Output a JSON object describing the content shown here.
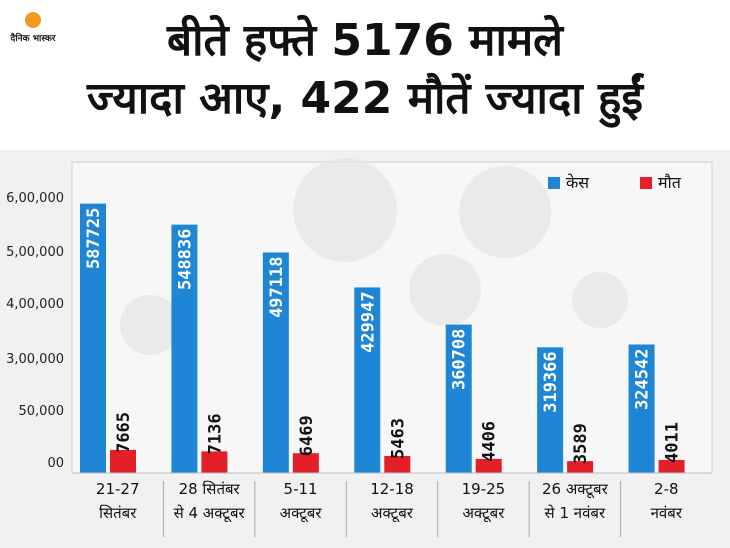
{
  "headline": {
    "line1": "बीते हफ्ते 5176 मामले",
    "line2": "ज्यादा आए, 422 मौतें ज्यादा हुईं"
  },
  "logo": {
    "text": "दैनिक भास्कर",
    "sun_color": "#f39a1e"
  },
  "colors": {
    "cases": "#1f86d6",
    "deaths": "#e3202a",
    "cases_text": "#ffffff",
    "deaths_text": "#111111"
  },
  "chart_data": {
    "type": "bar",
    "categories": [
      [
        "21-27",
        "सितंबर"
      ],
      [
        "28 सितंबर",
        "से 4 अक्टूबर"
      ],
      [
        "5-11",
        "अक्टूबर"
      ],
      [
        "12-18",
        "अक्टूबर"
      ],
      [
        "19-25",
        "अक्टूबर"
      ],
      [
        "26 अक्टूबर",
        "से 1 नवंबर"
      ],
      [
        "2-8",
        "नवंबर"
      ]
    ],
    "series": [
      {
        "name": "केस",
        "values": [
          587725,
          548836,
          497118,
          429947,
          360708,
          319366,
          324542
        ]
      },
      {
        "name": "मौत",
        "values": [
          7665,
          7136,
          6469,
          5463,
          4406,
          3589,
          4011
        ]
      }
    ],
    "value_labels": {
      "cases": [
        "587725",
        "548836",
        "497118",
        "429947",
        "360708",
        "319366",
        "324542"
      ],
      "deaths": [
        "7665",
        "7136",
        "6469",
        "5463",
        "4406",
        "3589",
        "4011"
      ]
    },
    "y_ticks": [
      "6,00,000",
      "5,00,000",
      "4,00,000",
      "3,00,000",
      "50,000",
      "00"
    ],
    "legend": [
      "केस",
      "मौत"
    ],
    "legend_position": "top-right",
    "grid": false
  }
}
